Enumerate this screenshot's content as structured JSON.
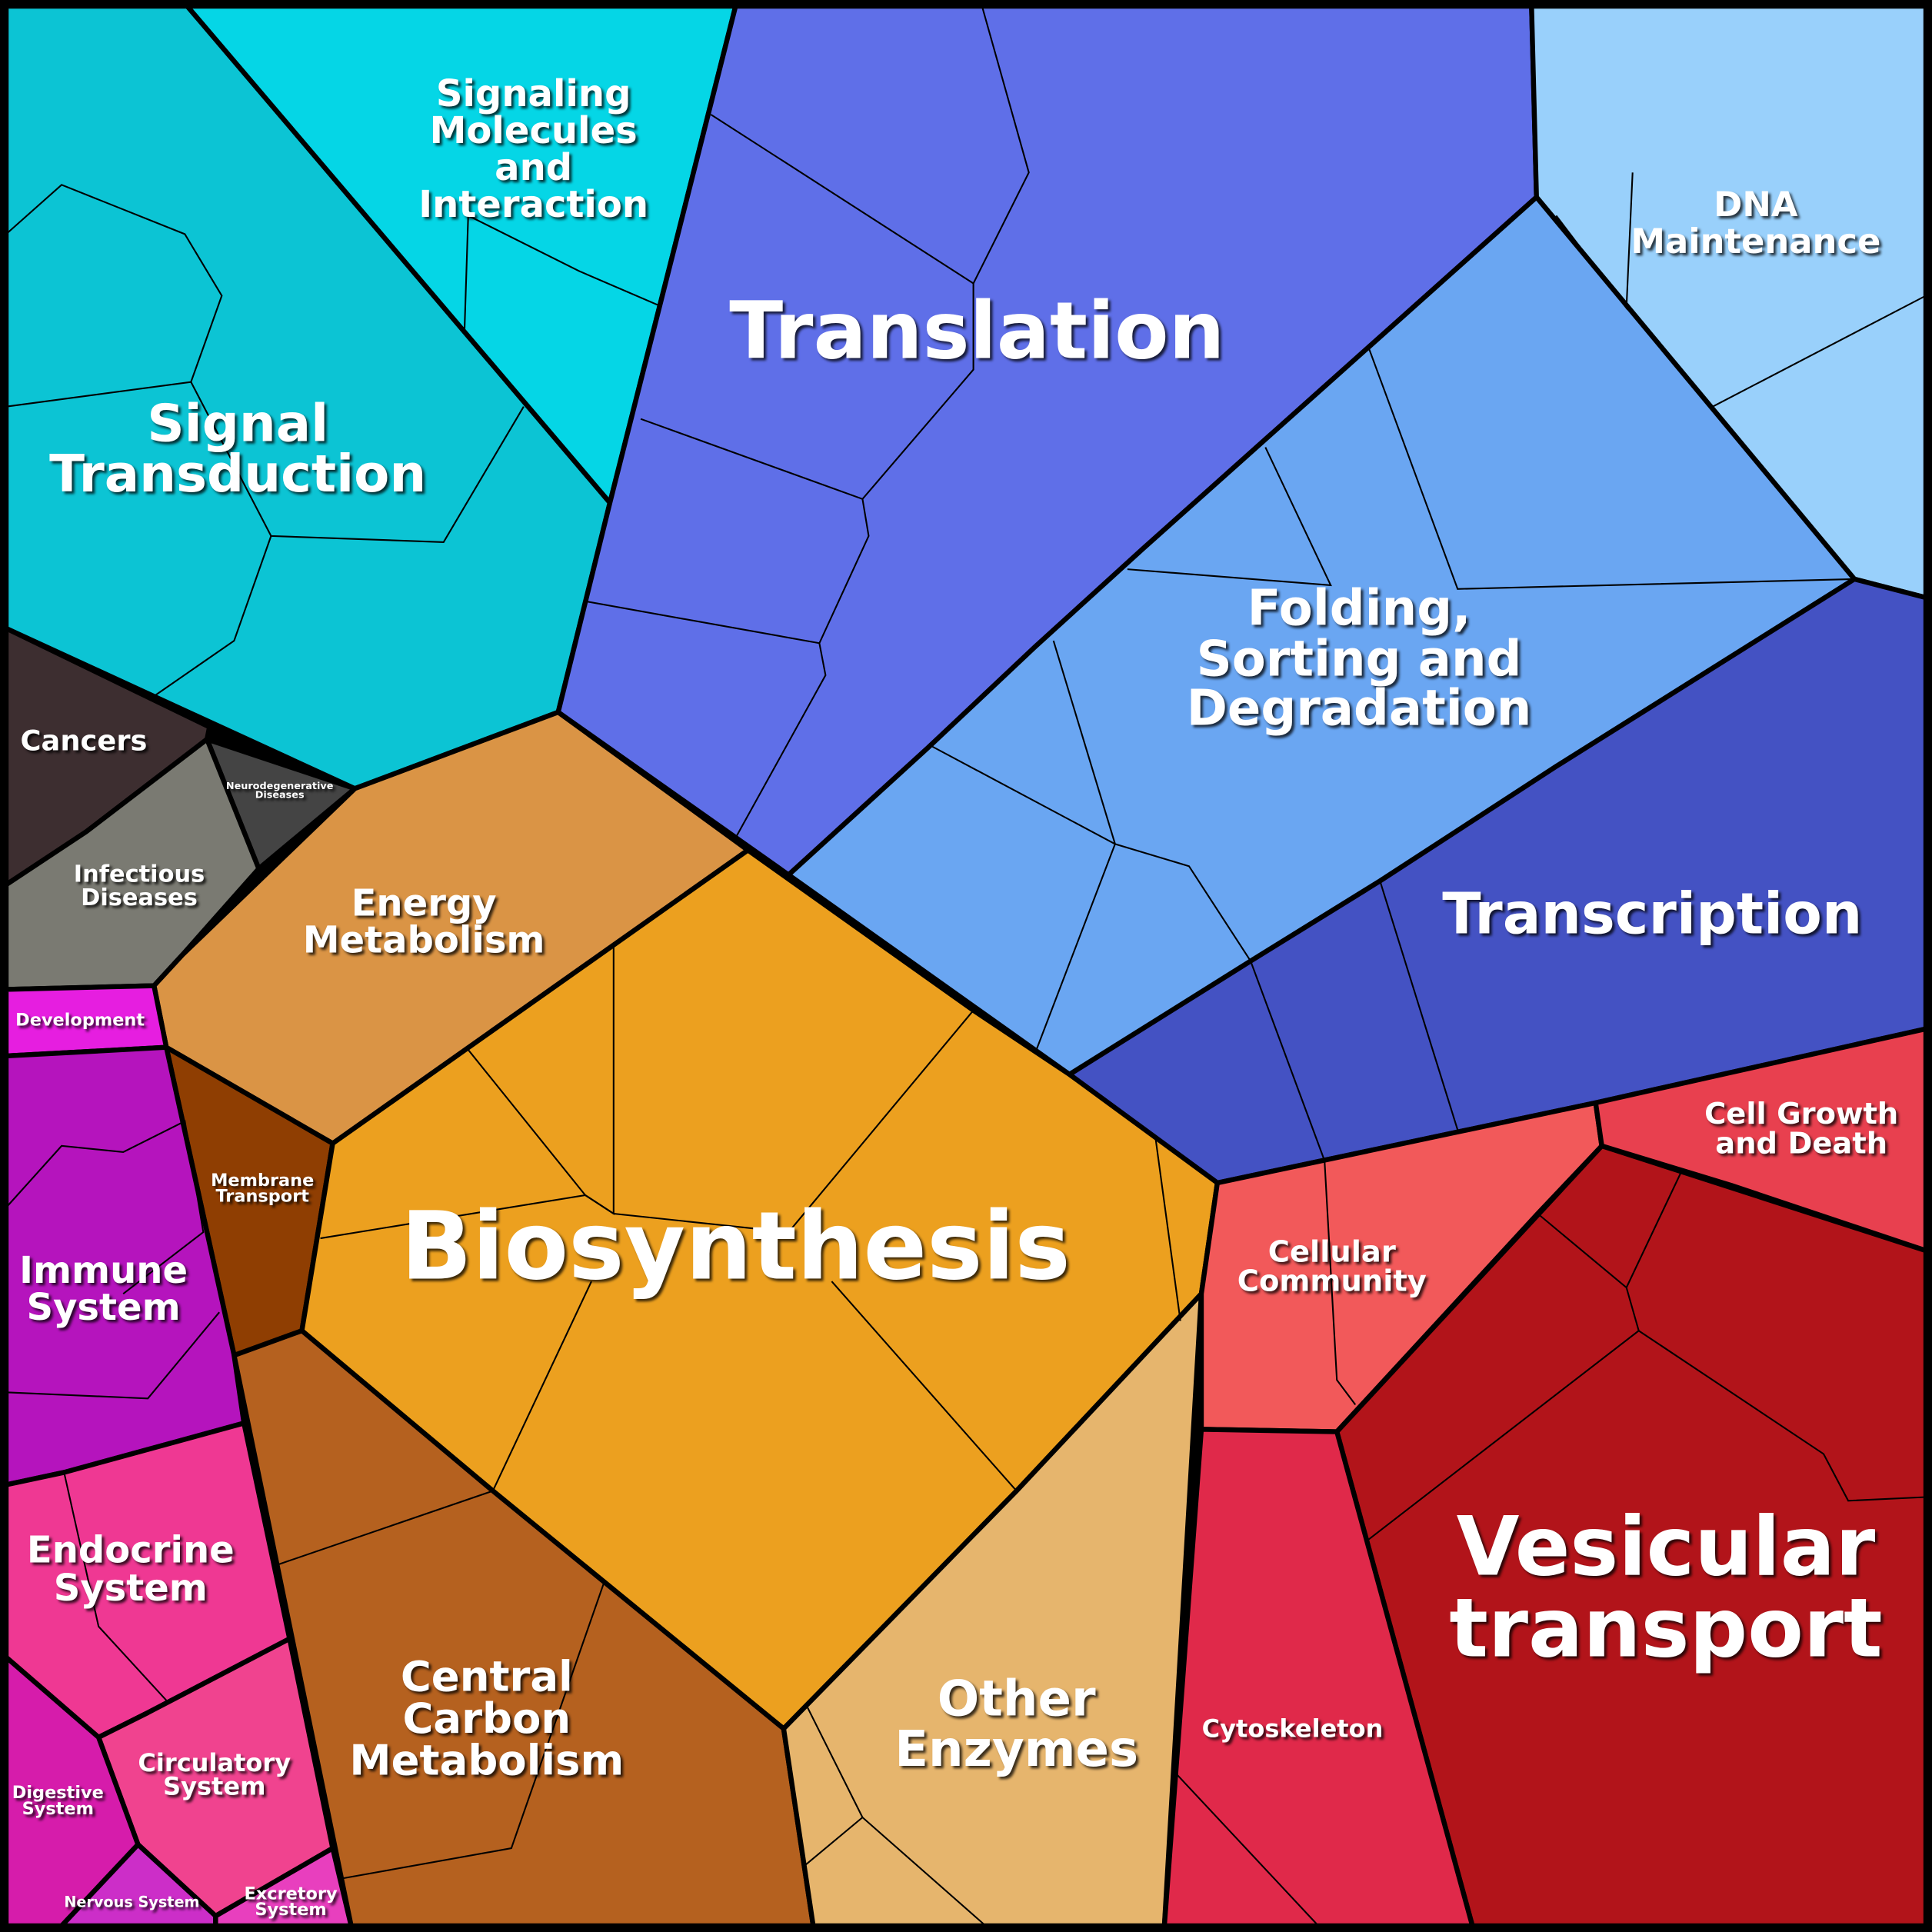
{
  "regions": [
    {
      "lines": [
        "Signal",
        "Transduction"
      ]
    },
    {
      "lines": [
        "Signaling",
        "Molecules",
        "and",
        "Interaction"
      ]
    },
    {
      "lines": [
        "Translation"
      ]
    },
    {
      "lines": [
        "DNA",
        "Maintenance"
      ]
    },
    {
      "lines": [
        "Folding,",
        "Sorting and",
        "Degradation"
      ]
    },
    {
      "lines": [
        "Transcription"
      ]
    },
    {
      "lines": [
        "Cancers"
      ]
    },
    {
      "lines": [
        "Neurodegenerative",
        "Diseases"
      ]
    },
    {
      "lines": [
        "Infectious",
        "Diseases"
      ]
    },
    {
      "lines": [
        "Energy",
        "Metabolism"
      ]
    },
    {
      "lines": [
        "Development"
      ]
    },
    {
      "lines": [
        "Membrane",
        "Transport"
      ]
    },
    {
      "lines": [
        "Biosynthesis"
      ]
    },
    {
      "lines": [
        "Immune",
        "System"
      ]
    },
    {
      "lines": [
        "Endocrine",
        "System"
      ]
    },
    {
      "lines": [
        "Central",
        "Carbon",
        "Metabolism"
      ]
    },
    {
      "lines": [
        "Other",
        "Enzymes"
      ]
    },
    {
      "lines": [
        "Cellular",
        "Community"
      ]
    },
    {
      "lines": [
        "Cell Growth",
        "and Death"
      ]
    },
    {
      "lines": [
        "Vesicular",
        "transport"
      ]
    },
    {
      "lines": [
        "Cytoskeleton"
      ]
    },
    {
      "lines": [
        "Circulatory",
        "System"
      ]
    },
    {
      "lines": [
        "Digestive",
        "System"
      ]
    },
    {
      "lines": [
        "Nervous System"
      ]
    },
    {
      "lines": [
        "Excretory",
        "System"
      ]
    }
  ]
}
